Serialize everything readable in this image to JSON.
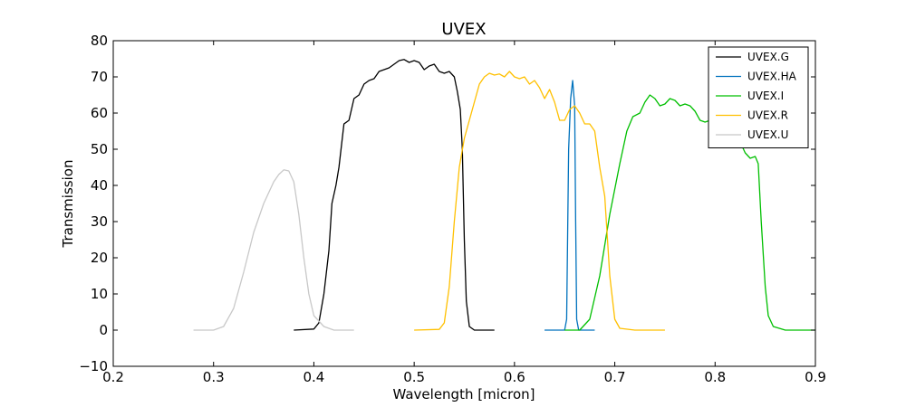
{
  "chart_data": {
    "type": "line",
    "title": "UVEX",
    "xlabel": "Wavelength [micron]",
    "ylabel": "Transmission",
    "xlim": [
      0.2,
      0.9
    ],
    "ylim": [
      -10,
      80
    ],
    "xticks": [
      0.2,
      0.3,
      0.4,
      0.5,
      0.6,
      0.7,
      0.8,
      0.9
    ],
    "yticks": [
      -10,
      0,
      10,
      20,
      30,
      40,
      50,
      60,
      70,
      80
    ],
    "xtick_labels": [
      "0.2",
      "0.3",
      "0.4",
      "0.5",
      "0.6",
      "0.7",
      "0.8",
      "0.9"
    ],
    "ytick_labels": [
      "−10",
      "0",
      "10",
      "20",
      "30",
      "40",
      "50",
      "60",
      "70",
      "80"
    ],
    "grid": false,
    "legend_position": "top-right",
    "series": [
      {
        "name": "UVEX.G",
        "color": "#000000",
        "points": [
          [
            0.38,
            0
          ],
          [
            0.4,
            0.3
          ],
          [
            0.405,
            2
          ],
          [
            0.41,
            10
          ],
          [
            0.415,
            22
          ],
          [
            0.418,
            35
          ],
          [
            0.422,
            40
          ],
          [
            0.425,
            45
          ],
          [
            0.43,
            57
          ],
          [
            0.435,
            58
          ],
          [
            0.44,
            64
          ],
          [
            0.445,
            65
          ],
          [
            0.45,
            68
          ],
          [
            0.455,
            69
          ],
          [
            0.46,
            69.5
          ],
          [
            0.465,
            71.5
          ],
          [
            0.47,
            72
          ],
          [
            0.475,
            72.5
          ],
          [
            0.48,
            73.5
          ],
          [
            0.485,
            74.5
          ],
          [
            0.49,
            74.8
          ],
          [
            0.495,
            74
          ],
          [
            0.5,
            74.5
          ],
          [
            0.505,
            74
          ],
          [
            0.51,
            72
          ],
          [
            0.515,
            73
          ],
          [
            0.52,
            73.5
          ],
          [
            0.525,
            71.5
          ],
          [
            0.53,
            71
          ],
          [
            0.535,
            71.5
          ],
          [
            0.54,
            70
          ],
          [
            0.543,
            66
          ],
          [
            0.546,
            61
          ],
          [
            0.548,
            50
          ],
          [
            0.55,
            25
          ],
          [
            0.552,
            8
          ],
          [
            0.555,
            1
          ],
          [
            0.56,
            0
          ],
          [
            0.58,
            0
          ]
        ]
      },
      {
        "name": "UVEX.HA",
        "color": "#0072bd",
        "points": [
          [
            0.63,
            0
          ],
          [
            0.65,
            0
          ],
          [
            0.652,
            3
          ],
          [
            0.654,
            50
          ],
          [
            0.656,
            64
          ],
          [
            0.658,
            69
          ],
          [
            0.66,
            62
          ],
          [
            0.661,
            30
          ],
          [
            0.662,
            3
          ],
          [
            0.664,
            0
          ],
          [
            0.68,
            0
          ]
        ]
      },
      {
        "name": "UVEX.I",
        "color": "#00bf00",
        "points": [
          [
            0.65,
            0
          ],
          [
            0.665,
            0
          ],
          [
            0.675,
            3
          ],
          [
            0.685,
            15
          ],
          [
            0.695,
            32
          ],
          [
            0.705,
            46
          ],
          [
            0.712,
            55
          ],
          [
            0.718,
            59
          ],
          [
            0.725,
            60
          ],
          [
            0.73,
            63
          ],
          [
            0.735,
            65
          ],
          [
            0.74,
            64
          ],
          [
            0.745,
            62
          ],
          [
            0.75,
            62.5
          ],
          [
            0.755,
            64
          ],
          [
            0.76,
            63.5
          ],
          [
            0.765,
            62
          ],
          [
            0.77,
            62.5
          ],
          [
            0.775,
            62
          ],
          [
            0.78,
            60.5
          ],
          [
            0.785,
            58
          ],
          [
            0.79,
            57.5
          ],
          [
            0.795,
            58
          ],
          [
            0.8,
            57
          ],
          [
            0.805,
            55.5
          ],
          [
            0.81,
            55
          ],
          [
            0.815,
            55
          ],
          [
            0.82,
            53
          ],
          [
            0.825,
            52
          ],
          [
            0.83,
            49
          ],
          [
            0.835,
            47.5
          ],
          [
            0.84,
            48
          ],
          [
            0.843,
            46
          ],
          [
            0.846,
            30
          ],
          [
            0.85,
            12
          ],
          [
            0.853,
            4
          ],
          [
            0.858,
            1
          ],
          [
            0.87,
            0
          ],
          [
            0.9,
            0
          ]
        ]
      },
      {
        "name": "UVEX.R",
        "color": "#ffc000",
        "points": [
          [
            0.5,
            0
          ],
          [
            0.525,
            0.2
          ],
          [
            0.53,
            2
          ],
          [
            0.535,
            12
          ],
          [
            0.54,
            30
          ],
          [
            0.545,
            45
          ],
          [
            0.55,
            53
          ],
          [
            0.555,
            58
          ],
          [
            0.56,
            63
          ],
          [
            0.565,
            68
          ],
          [
            0.57,
            70
          ],
          [
            0.575,
            71
          ],
          [
            0.58,
            70.5
          ],
          [
            0.585,
            70.8
          ],
          [
            0.59,
            70
          ],
          [
            0.595,
            71.5
          ],
          [
            0.6,
            70
          ],
          [
            0.605,
            69.5
          ],
          [
            0.61,
            70
          ],
          [
            0.615,
            68
          ],
          [
            0.62,
            69
          ],
          [
            0.625,
            67
          ],
          [
            0.63,
            64
          ],
          [
            0.635,
            66.5
          ],
          [
            0.64,
            63
          ],
          [
            0.645,
            58
          ],
          [
            0.65,
            58
          ],
          [
            0.655,
            61
          ],
          [
            0.66,
            62
          ],
          [
            0.665,
            60
          ],
          [
            0.67,
            57
          ],
          [
            0.675,
            57
          ],
          [
            0.68,
            55
          ],
          [
            0.685,
            45
          ],
          [
            0.69,
            37
          ],
          [
            0.695,
            15
          ],
          [
            0.7,
            3
          ],
          [
            0.705,
            0.5
          ],
          [
            0.72,
            0
          ],
          [
            0.75,
            0
          ]
        ]
      },
      {
        "name": "UVEX.U",
        "color": "#c8c8c8",
        "points": [
          [
            0.28,
            0
          ],
          [
            0.3,
            0
          ],
          [
            0.31,
            1
          ],
          [
            0.32,
            6
          ],
          [
            0.33,
            16
          ],
          [
            0.34,
            27
          ],
          [
            0.35,
            35
          ],
          [
            0.36,
            41
          ],
          [
            0.365,
            43
          ],
          [
            0.37,
            44.3
          ],
          [
            0.375,
            44
          ],
          [
            0.38,
            41
          ],
          [
            0.385,
            32
          ],
          [
            0.39,
            20
          ],
          [
            0.395,
            10
          ],
          [
            0.4,
            4
          ],
          [
            0.41,
            1
          ],
          [
            0.42,
            0
          ],
          [
            0.44,
            0
          ]
        ]
      }
    ]
  }
}
